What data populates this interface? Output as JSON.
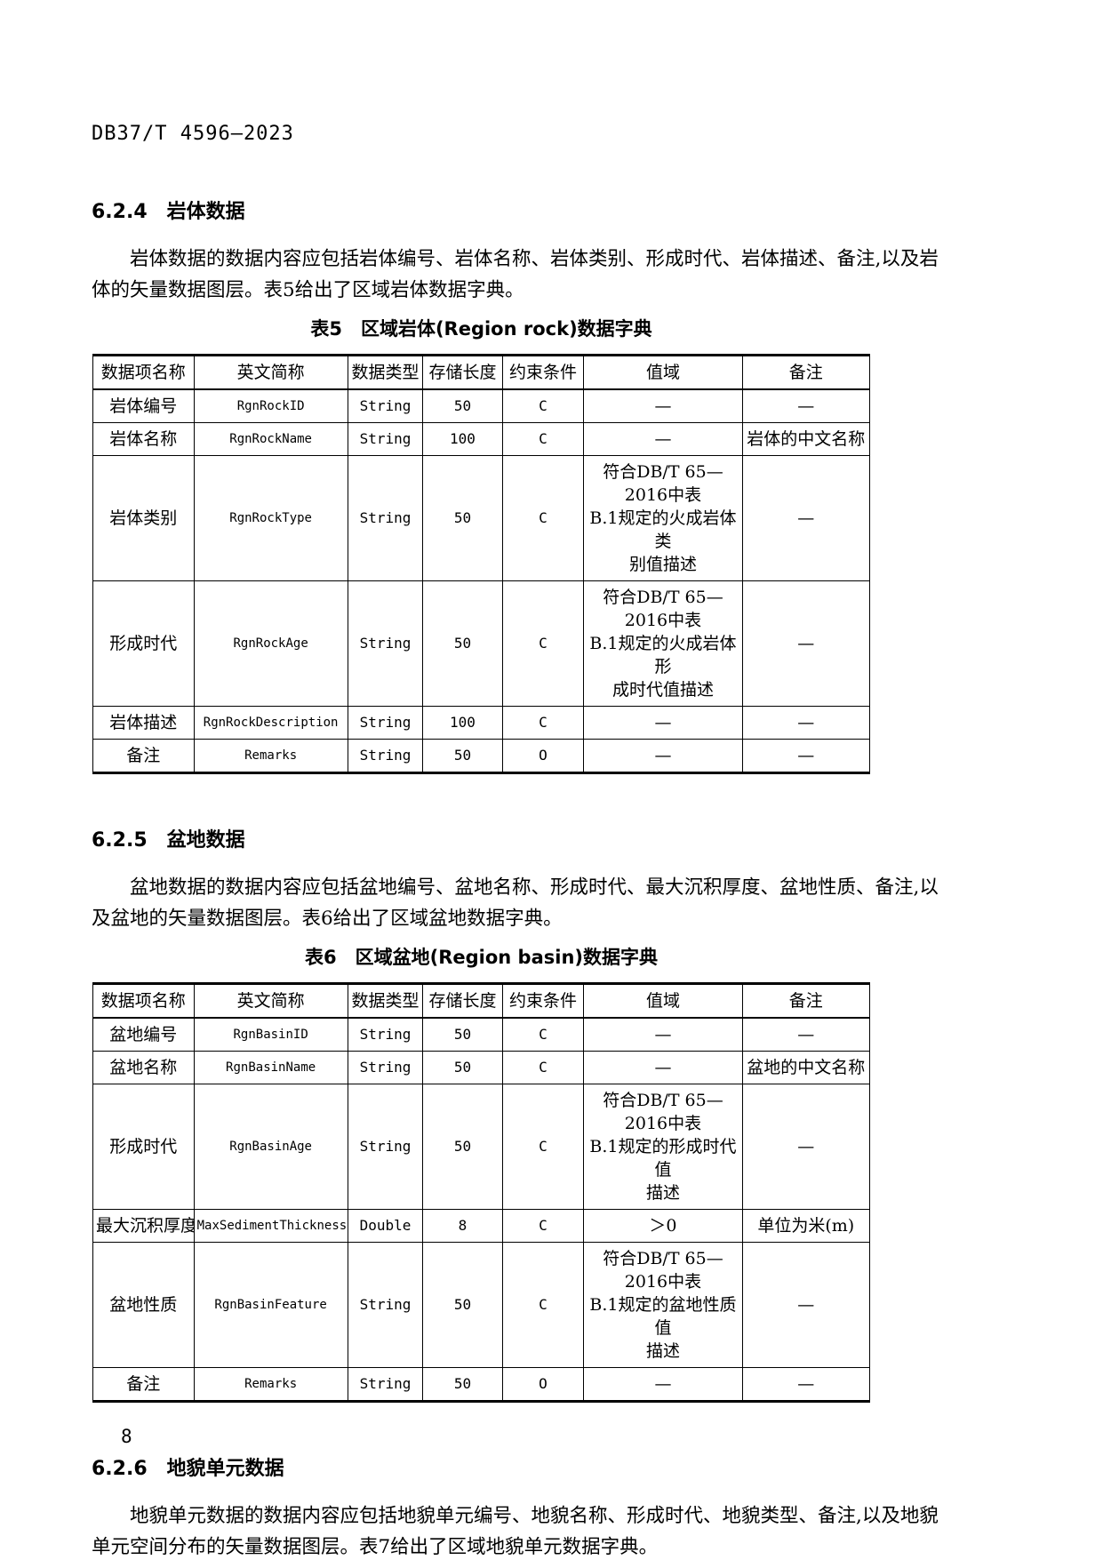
{
  "doc_header": "DB37/T 4596—2023",
  "page_number": "8",
  "sections": [
    {
      "heading": "6.2.4　岩体数据",
      "paragraph": "岩体数据的数据内容应包括岩体编号、岩体名称、岩体类别、形成时代、岩体描述、备注,以及岩\n体的矢量数据图层。表5给出了区域岩体数据字典。"
    },
    {
      "heading": "6.2.5　盆地数据",
      "paragraph": "盆地数据的数据内容应包括盆地编号、盆地名称、形成时代、最大沉积厚度、盆地性质、备注,以\n及盆地的矢量数据图层。表6给出了区域盆地数据字典。"
    },
    {
      "heading": "6.2.6　地貌单元数据",
      "paragraph": "地貌单元数据的数据内容应包括地貌单元编号、地貌名称、形成时代、地貌类型、备注,以及地貌\n单元空间分布的矢量数据图层。表7给出了区域地貌单元数据字典。"
    }
  ],
  "tables": [
    {
      "caption": "表5　区域岩体(Region rock)数据字典",
      "headers": [
        "数据项名称",
        "英文简称",
        "数据类型",
        "存储长度",
        "约束条件",
        "值域",
        "备注"
      ],
      "rows": [
        [
          "岩体编号",
          "RgnRockID",
          "String",
          "50",
          "C",
          "—",
          "—"
        ],
        [
          "岩体名称",
          "RgnRockName",
          "String",
          "100",
          "C",
          "—",
          "岩体的中文名称"
        ],
        [
          "岩体类别",
          "RgnRockType",
          "String",
          "50",
          "C",
          "符合DB/T 65—2016中表\nB.1规定的火成岩体类\n别值描述",
          "—"
        ],
        [
          "形成时代",
          "RgnRockAge",
          "String",
          "50",
          "C",
          "符合DB/T 65—2016中表\nB.1规定的火成岩体形\n成时代值描述",
          "—"
        ],
        [
          "岩体描述",
          "RgnRockDescription",
          "String",
          "100",
          "C",
          "—",
          "—"
        ],
        [
          "备注",
          "Remarks",
          "String",
          "50",
          "O",
          "—",
          "—"
        ]
      ]
    },
    {
      "caption": "表6　区域盆地(Region basin)数据字典",
      "headers": [
        "数据项名称",
        "英文简称",
        "数据类型",
        "存储长度",
        "约束条件",
        "值域",
        "备注"
      ],
      "rows": [
        [
          "盆地编号",
          "RgnBasinID",
          "String",
          "50",
          "C",
          "—",
          "—"
        ],
        [
          "盆地名称",
          "RgnBasinName",
          "String",
          "50",
          "C",
          "—",
          "盆地的中文名称"
        ],
        [
          "形成时代",
          "RgnBasinAge",
          "String",
          "50",
          "C",
          "符合DB/T 65—2016中表\nB.1规定的形成时代值\n描述",
          "—"
        ],
        [
          "最大沉积厚度",
          "MaxSedimentThickness",
          "Double",
          "8",
          "C",
          "＞0",
          "单位为米(m)"
        ],
        [
          "盆地性质",
          "RgnBasinFeature",
          "String",
          "50",
          "C",
          "符合DB/T 65—2016中表\nB.1规定的盆地性质值\n描述",
          "—"
        ],
        [
          "备注",
          "Remarks",
          "String",
          "50",
          "O",
          "—",
          "—"
        ]
      ]
    }
  ]
}
